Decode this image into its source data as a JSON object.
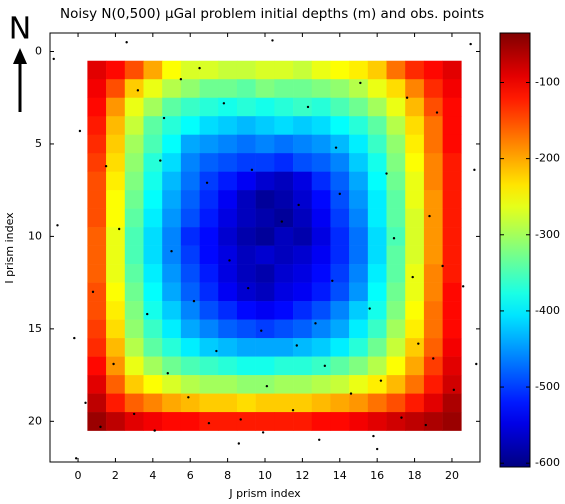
{
  "chart_data": {
    "type": "heatmap",
    "title": "Noisy N(0,500) μGal problem initial depths (m) and obs. points",
    "annotation": "N",
    "x_label": "J prism index",
    "y_label": "I prism index",
    "x": [
      1,
      2,
      3,
      4,
      5,
      6,
      7,
      8,
      9,
      10,
      11,
      12,
      13,
      14,
      15,
      16,
      17,
      18,
      19,
      20
    ],
    "y": [
      1,
      2,
      3,
      4,
      5,
      6,
      7,
      8,
      9,
      10,
      11,
      12,
      13,
      14,
      15,
      16,
      17,
      18,
      19,
      20
    ],
    "z": [
      [
        -90,
        -110,
        -150,
        -200,
        -250,
        -270,
        -270,
        -280,
        -280,
        -270,
        -270,
        -280,
        -260,
        -250,
        -240,
        -220,
        -170,
        -130,
        -110,
        -90
      ],
      [
        -100,
        -150,
        -220,
        -260,
        -290,
        -310,
        -330,
        -330,
        -340,
        -320,
        -330,
        -330,
        -320,
        -310,
        -290,
        -260,
        -230,
        -180,
        -130,
        -100
      ],
      [
        -110,
        -190,
        -260,
        -300,
        -340,
        -360,
        -370,
        -380,
        -370,
        -380,
        -370,
        -360,
        -370,
        -350,
        -330,
        -300,
        -260,
        -210,
        -150,
        -110
      ],
      [
        -120,
        -210,
        -280,
        -340,
        -370,
        -390,
        -410,
        -420,
        -430,
        -420,
        -410,
        -420,
        -410,
        -390,
        -370,
        -340,
        -290,
        -230,
        -170,
        -110
      ],
      [
        -130,
        -220,
        -300,
        -350,
        -390,
        -440,
        -450,
        -460,
        -470,
        -460,
        -470,
        -460,
        -450,
        -430,
        -400,
        -360,
        -310,
        -240,
        -170,
        -110
      ],
      [
        -140,
        -230,
        -310,
        -370,
        -410,
        -460,
        -480,
        -490,
        -500,
        -500,
        -510,
        -490,
        -480,
        -460,
        -420,
        -380,
        -320,
        -250,
        -180,
        -120
      ],
      [
        -150,
        -240,
        -320,
        -380,
        -430,
        -470,
        -500,
        -520,
        -540,
        -560,
        -570,
        -550,
        -510,
        -480,
        -440,
        -390,
        -330,
        -260,
        -180,
        -120
      ],
      [
        -150,
        -250,
        -330,
        -390,
        -440,
        -480,
        -510,
        -540,
        -570,
        -590,
        -580,
        -560,
        -530,
        -490,
        -450,
        -400,
        -340,
        -260,
        -190,
        -120
      ],
      [
        -150,
        -250,
        -340,
        -400,
        -450,
        -490,
        -520,
        -550,
        -570,
        -580,
        -590,
        -570,
        -540,
        -500,
        -460,
        -400,
        -340,
        -270,
        -190,
        -120
      ],
      [
        -160,
        -260,
        -350,
        -410,
        -460,
        -510,
        -530,
        -560,
        -580,
        -590,
        -570,
        -580,
        -550,
        -510,
        -470,
        -410,
        -350,
        -270,
        -190,
        -120
      ],
      [
        -160,
        -260,
        -350,
        -410,
        -460,
        -500,
        -530,
        -550,
        -570,
        -560,
        -570,
        -560,
        -540,
        -510,
        -470,
        -410,
        -340,
        -270,
        -190,
        -120
      ],
      [
        -160,
        -260,
        -340,
        -400,
        -450,
        -490,
        -520,
        -550,
        -570,
        -580,
        -560,
        -550,
        -530,
        -500,
        -460,
        -400,
        -340,
        -260,
        -180,
        -120
      ],
      [
        -150,
        -250,
        -330,
        -390,
        -440,
        -480,
        -510,
        -540,
        -560,
        -570,
        -550,
        -540,
        -520,
        -490,
        -450,
        -390,
        -330,
        -260,
        -180,
        -110
      ],
      [
        -150,
        -240,
        -320,
        -380,
        -420,
        -460,
        -490,
        -510,
        -530,
        -540,
        -530,
        -510,
        -490,
        -460,
        -420,
        -380,
        -320,
        -250,
        -170,
        -110
      ],
      [
        -140,
        -230,
        -310,
        -360,
        -400,
        -440,
        -460,
        -480,
        -490,
        -500,
        -490,
        -480,
        -460,
        -440,
        -400,
        -360,
        -300,
        -240,
        -170,
        -110
      ],
      [
        -130,
        -210,
        -290,
        -340,
        -370,
        -400,
        -420,
        -430,
        -440,
        -440,
        -440,
        -430,
        -420,
        -400,
        -370,
        -330,
        -280,
        -220,
        -160,
        -100
      ],
      [
        -110,
        -190,
        -260,
        -300,
        -330,
        -350,
        -360,
        -370,
        -380,
        -380,
        -370,
        -370,
        -360,
        -340,
        -320,
        -290,
        -250,
        -200,
        -140,
        -90
      ],
      [
        -90,
        -160,
        -220,
        -250,
        -270,
        -290,
        -300,
        -300,
        -310,
        -310,
        -300,
        -300,
        -290,
        -280,
        -260,
        -240,
        -210,
        -170,
        -120,
        -80
      ],
      [
        -70,
        -120,
        -160,
        -180,
        -200,
        -210,
        -220,
        -220,
        -230,
        -220,
        -220,
        -220,
        -210,
        -200,
        -190,
        -170,
        -150,
        -120,
        -90,
        -60
      ],
      [
        -50,
        -70,
        -90,
        -100,
        -110,
        -110,
        -120,
        -120,
        -120,
        -120,
        -120,
        -120,
        -110,
        -110,
        -100,
        -90,
        -80,
        -70,
        -60,
        -50
      ]
    ],
    "points": [
      [
        -1.3,
        0.4
      ],
      [
        2.6,
        -0.5
      ],
      [
        10.4,
        -0.6
      ],
      [
        21.0,
        -0.4
      ],
      [
        0.1,
        4.3
      ],
      [
        3.2,
        2.1
      ],
      [
        5.5,
        1.5
      ],
      [
        7.8,
        2.8
      ],
      [
        12.3,
        3.0
      ],
      [
        15.1,
        1.7
      ],
      [
        17.6,
        2.5
      ],
      [
        19.2,
        3.3
      ],
      [
        1.5,
        6.2
      ],
      [
        4.4,
        5.9
      ],
      [
        6.9,
        7.1
      ],
      [
        9.3,
        6.4
      ],
      [
        11.8,
        8.3
      ],
      [
        14.0,
        7.7
      ],
      [
        16.5,
        6.6
      ],
      [
        18.8,
        8.9
      ],
      [
        2.2,
        9.6
      ],
      [
        5.0,
        10.8
      ],
      [
        8.1,
        11.3
      ],
      [
        10.9,
        9.2
      ],
      [
        13.6,
        12.4
      ],
      [
        16.9,
        10.1
      ],
      [
        19.5,
        11.6
      ],
      [
        0.8,
        13.0
      ],
      [
        3.7,
        14.2
      ],
      [
        6.2,
        13.5
      ],
      [
        9.8,
        15.1
      ],
      [
        12.7,
        14.7
      ],
      [
        15.6,
        13.9
      ],
      [
        18.2,
        15.8
      ],
      [
        20.6,
        12.7
      ],
      [
        -0.2,
        15.5
      ],
      [
        1.9,
        16.9
      ],
      [
        4.8,
        17.4
      ],
      [
        7.4,
        16.2
      ],
      [
        10.1,
        18.1
      ],
      [
        13.2,
        17.0
      ],
      [
        16.2,
        17.8
      ],
      [
        19.0,
        16.6
      ],
      [
        0.4,
        19.0
      ],
      [
        3.0,
        19.6
      ],
      [
        5.9,
        18.7
      ],
      [
        8.7,
        19.9
      ],
      [
        11.5,
        19.4
      ],
      [
        14.6,
        18.5
      ],
      [
        17.3,
        19.8
      ],
      [
        20.1,
        18.3
      ],
      [
        1.2,
        20.3
      ],
      [
        4.1,
        20.5
      ],
      [
        7.0,
        20.1
      ],
      [
        9.9,
        20.6
      ],
      [
        12.9,
        21.0
      ],
      [
        15.8,
        20.8
      ],
      [
        18.6,
        20.2
      ],
      [
        8.6,
        21.2
      ],
      [
        16.0,
        21.5
      ],
      [
        -0.1,
        22.0
      ],
      [
        21.3,
        16.9
      ],
      [
        -1.1,
        9.4
      ],
      [
        21.2,
        6.4
      ],
      [
        6.5,
        0.9
      ],
      [
        13.8,
        5.2
      ],
      [
        9.1,
        12.8
      ],
      [
        11.7,
        15.9
      ],
      [
        4.6,
        3.6
      ],
      [
        17.9,
        12.2
      ]
    ],
    "xlim": [
      -1.5,
      21.5
    ],
    "ylim": [
      22.2,
      -1
    ],
    "xticks": [
      0,
      2,
      4,
      6,
      8,
      10,
      12,
      14,
      16,
      18,
      20
    ],
    "yticks": [
      0,
      5,
      10,
      15,
      20
    ],
    "colormap": "jet",
    "clim": [
      -605,
      -35
    ],
    "colorbar_ticks": [
      -100,
      -200,
      -300,
      -400,
      -500,
      -600
    ],
    "point_color": "#000000"
  }
}
